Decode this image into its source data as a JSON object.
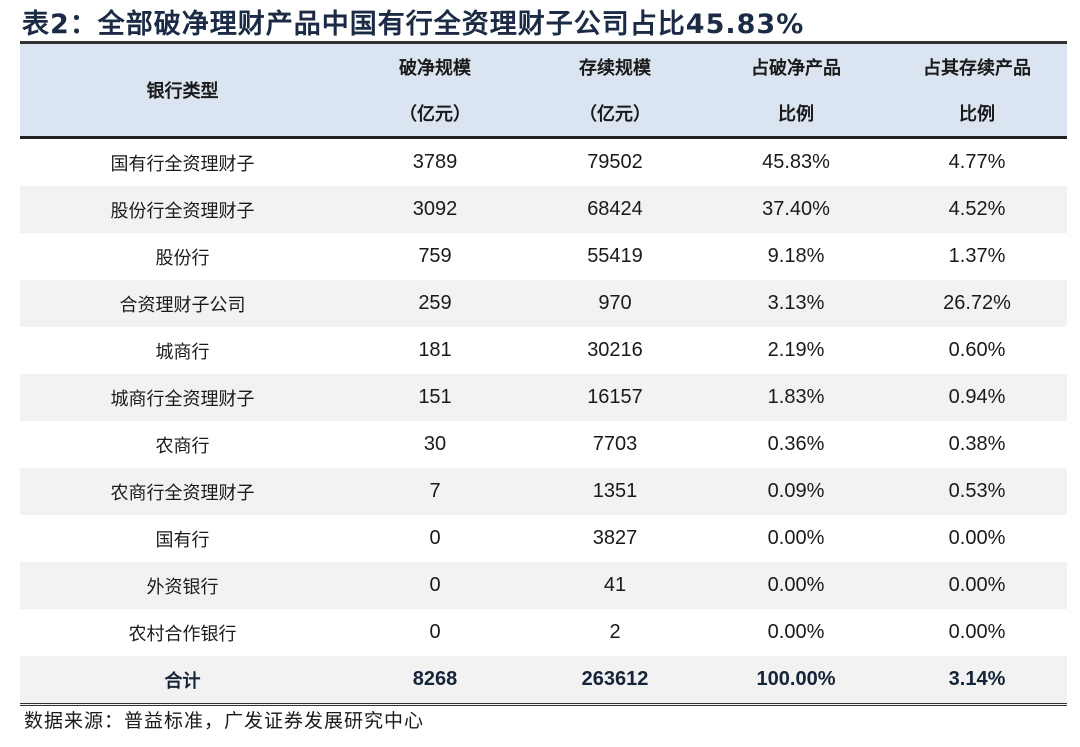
{
  "title": "表2：全部破净理财产品中国有行全资理财子公司占比45.83%",
  "headers": [
    {
      "line1": "银行类型",
      "line2": ""
    },
    {
      "line1": "破净规模",
      "line2": "（亿元）"
    },
    {
      "line1": "存续规模",
      "line2": "（亿元）"
    },
    {
      "line1": "占破净产品",
      "line2": "比例"
    },
    {
      "line1": "占其存续产品",
      "line2": "比例"
    }
  ],
  "rows": [
    [
      "国有行全资理财子",
      "3789",
      "79502",
      "45.83%",
      "4.77%"
    ],
    [
      "股份行全资理财子",
      "3092",
      "68424",
      "37.40%",
      "4.52%"
    ],
    [
      "股份行",
      "759",
      "55419",
      "9.18%",
      "1.37%"
    ],
    [
      "合资理财子公司",
      "259",
      "970",
      "3.13%",
      "26.72%"
    ],
    [
      "城商行",
      "181",
      "30216",
      "2.19%",
      "0.60%"
    ],
    [
      "城商行全资理财子",
      "151",
      "16157",
      "1.83%",
      "0.94%"
    ],
    [
      "农商行",
      "30",
      "7703",
      "0.36%",
      "0.38%"
    ],
    [
      "农商行全资理财子",
      "7",
      "1351",
      "0.09%",
      "0.53%"
    ],
    [
      "国有行",
      "0",
      "3827",
      "0.00%",
      "0.00%"
    ],
    [
      "外资银行",
      "0",
      "41",
      "0.00%",
      "0.00%"
    ],
    [
      "农村合作银行",
      "0",
      "2",
      "0.00%",
      "0.00%"
    ]
  ],
  "total": [
    "合计",
    "8268",
    "263612",
    "100.00%",
    "3.14%"
  ],
  "source": "数据来源：普益标准，广发证券发展研究中心"
}
